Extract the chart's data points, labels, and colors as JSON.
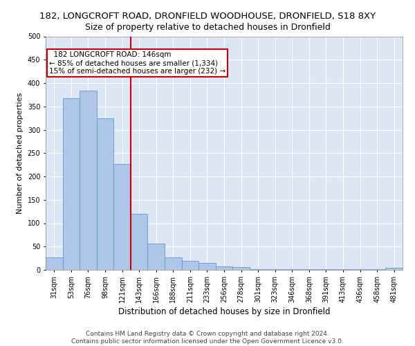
{
  "title1": "182, LONGCROFT ROAD, DRONFIELD WOODHOUSE, DRONFIELD, S18 8XY",
  "title2": "Size of property relative to detached houses in Dronfield",
  "xlabel": "Distribution of detached houses by size in Dronfield",
  "ylabel": "Number of detached properties",
  "footer": "Contains HM Land Registry data © Crown copyright and database right 2024.\nContains public sector information licensed under the Open Government Licence v3.0.",
  "bin_labels": [
    "31sqm",
    "53sqm",
    "76sqm",
    "98sqm",
    "121sqm",
    "143sqm",
    "166sqm",
    "188sqm",
    "211sqm",
    "233sqm",
    "256sqm",
    "278sqm",
    "301sqm",
    "323sqm",
    "346sqm",
    "368sqm",
    "391sqm",
    "413sqm",
    "436sqm",
    "458sqm",
    "481sqm"
  ],
  "bar_values": [
    27,
    368,
    383,
    325,
    226,
    120,
    57,
    27,
    20,
    15,
    7,
    6,
    2,
    2,
    2,
    1,
    1,
    1,
    1,
    1,
    4
  ],
  "bar_color": "#aec6e8",
  "bar_edge_color": "#5b9bd5",
  "property_line_index": 5,
  "annotation_text1": "182 LONGCROFT ROAD: 146sqm",
  "annotation_text2": "← 85% of detached houses are smaller (1,334)",
  "annotation_text3": "15% of semi-detached houses are larger (232) →",
  "annotation_box_color": "#ffffff",
  "annotation_box_edge": "#cc0000",
  "line_color": "#cc0000",
  "ylim": [
    0,
    500
  ],
  "yticks": [
    0,
    50,
    100,
    150,
    200,
    250,
    300,
    350,
    400,
    450,
    500
  ],
  "background_color": "#dce6f5",
  "fig_background": "#ffffff",
  "grid_color": "#ffffff",
  "title1_fontsize": 9.5,
  "title2_fontsize": 9,
  "xlabel_fontsize": 8.5,
  "ylabel_fontsize": 8,
  "tick_fontsize": 7,
  "footer_fontsize": 6.5,
  "annotation_fontsize": 7.5
}
